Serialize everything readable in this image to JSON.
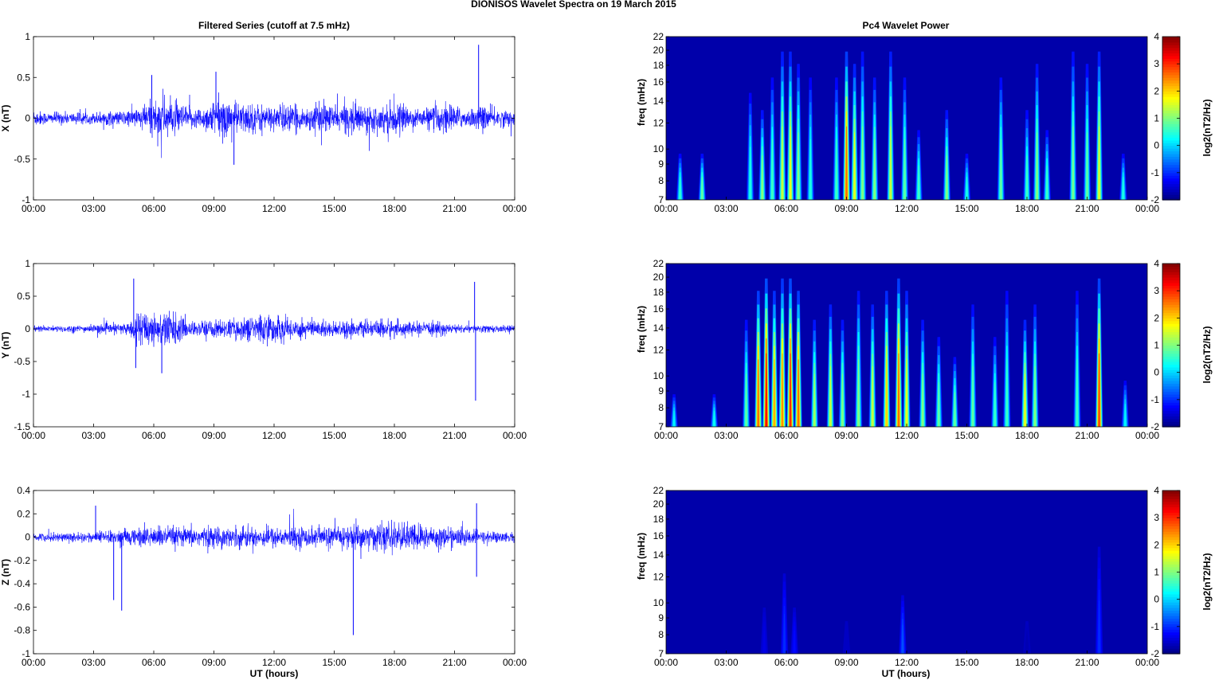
{
  "figure": {
    "title": "DIONISOS Wavelet Spectra on 19 March     2015",
    "left_title": "Filtered Series (cutoff at 7.5 mHz)",
    "right_title": "Pc4 Wavelet Power",
    "xlabel": "UT (hours)",
    "freq_label": "freq (mHz)",
    "colorbar_label": "log2(nT2/Hz)"
  },
  "colors": {
    "trace": "#0000ff",
    "background_power": "#00008f"
  },
  "chart_data": [
    {
      "type": "line",
      "title": "Filtered Series (cutoff at 7.5 mHz)",
      "ylabel": "X (nT)",
      "xlabel": "",
      "x_range_hours": [
        0,
        24
      ],
      "xticks": [
        "00:00",
        "03:00",
        "06:00",
        "09:00",
        "12:00",
        "15:00",
        "18:00",
        "21:00",
        "00:00"
      ],
      "ylim": [
        -1,
        1
      ],
      "yticks": [
        "-1",
        "-0.5",
        "0",
        "0.5",
        "1"
      ],
      "series": [
        {
          "values": [
            0.12,
            0.1,
            0.08,
            0.07,
            0.09,
            0.08,
            0.08,
            0.09,
            0.07,
            0.08,
            0.1,
            0.1,
            0.09,
            0.1,
            0.12,
            0.14,
            0.18,
            0.22,
            0.28,
            0.3,
            0.26,
            0.22,
            0.18,
            0.16,
            0.14,
            0.16,
            0.22,
            0.28,
            0.3,
            0.26,
            0.22,
            0.2,
            0.22,
            0.2,
            0.18,
            0.16,
            0.18,
            0.22,
            0.18,
            0.16,
            0.15,
            0.18,
            0.2,
            0.22,
            0.18,
            0.16,
            0.2,
            0.22,
            0.2,
            0.18,
            0.16,
            0.18,
            0.2,
            0.22,
            0.18,
            0.16,
            0.14,
            0.12,
            0.14,
            0.18,
            0.2,
            0.22,
            0.18,
            0.14,
            0.12,
            0.14,
            0.18,
            0.16,
            0.14,
            0.12,
            0.12,
            0.1
          ],
          "note_hours": 1
        }
      ],
      "spikes": [
        {
          "hour": 22.2,
          "value": 0.9
        },
        {
          "hour": 9.1,
          "value": 0.57
        },
        {
          "hour": 5.9,
          "value": 0.53
        },
        {
          "hour": 10.0,
          "value": -0.57
        }
      ]
    },
    {
      "type": "line",
      "ylabel": "Y (nT)",
      "xlabel": "",
      "x_range_hours": [
        0,
        24
      ],
      "xticks": [
        "00:00",
        "03:00",
        "06:00",
        "09:00",
        "12:00",
        "15:00",
        "18:00",
        "21:00",
        "00:00"
      ],
      "ylim": [
        -1.5,
        1
      ],
      "yticks": [
        "-1.5",
        "-1",
        "-0.5",
        "0",
        "0.5",
        "1"
      ],
      "series": [
        {
          "values": [
            0.06,
            0.06,
            0.05,
            0.05,
            0.06,
            0.06,
            0.07,
            0.06,
            0.06,
            0.07,
            0.08,
            0.08,
            0.09,
            0.09,
            0.12,
            0.2,
            0.3,
            0.32,
            0.28,
            0.3,
            0.34,
            0.26,
            0.18,
            0.14,
            0.12,
            0.14,
            0.16,
            0.16,
            0.14,
            0.16,
            0.18,
            0.2,
            0.22,
            0.24,
            0.28,
            0.26,
            0.22,
            0.2,
            0.18,
            0.2,
            0.18,
            0.16,
            0.15,
            0.14,
            0.12,
            0.14,
            0.16,
            0.14,
            0.12,
            0.12,
            0.12,
            0.16,
            0.18,
            0.16,
            0.14,
            0.12,
            0.12,
            0.1,
            0.1,
            0.12,
            0.12,
            0.1,
            0.08,
            0.07,
            0.06,
            0.06,
            0.07,
            0.07,
            0.06,
            0.06,
            0.06,
            0.05
          ]
        }
      ],
      "spikes": [
        {
          "hour": 22.0,
          "value": 0.72
        },
        {
          "hour": 22.05,
          "value": -1.1
        },
        {
          "hour": 5.0,
          "value": 0.77
        },
        {
          "hour": 6.4,
          "value": -0.68
        },
        {
          "hour": 5.1,
          "value": -0.6
        }
      ]
    },
    {
      "type": "line",
      "ylabel": "Z (nT)",
      "xlabel": "UT (hours)",
      "x_range_hours": [
        0,
        24
      ],
      "xticks": [
        "00:00",
        "03:00",
        "06:00",
        "09:00",
        "12:00",
        "15:00",
        "18:00",
        "21:00",
        "00:00"
      ],
      "ylim": [
        -1,
        0.4
      ],
      "yticks": [
        "-1",
        "-0.8",
        "-0.6",
        "-0.4",
        "-0.2",
        "0",
        "0.2",
        "0.4"
      ],
      "series": [
        {
          "values": [
            0.04,
            0.04,
            0.04,
            0.04,
            0.04,
            0.05,
            0.05,
            0.05,
            0.05,
            0.05,
            0.06,
            0.06,
            0.06,
            0.07,
            0.08,
            0.09,
            0.1,
            0.1,
            0.1,
            0.1,
            0.1,
            0.1,
            0.09,
            0.09,
            0.1,
            0.1,
            0.1,
            0.1,
            0.1,
            0.1,
            0.1,
            0.1,
            0.1,
            0.1,
            0.1,
            0.1,
            0.1,
            0.1,
            0.1,
            0.1,
            0.1,
            0.1,
            0.1,
            0.1,
            0.11,
            0.11,
            0.12,
            0.12,
            0.12,
            0.13,
            0.13,
            0.14,
            0.14,
            0.15,
            0.14,
            0.14,
            0.14,
            0.13,
            0.12,
            0.11,
            0.1,
            0.1,
            0.09,
            0.09,
            0.08,
            0.07,
            0.06,
            0.06,
            0.06,
            0.05,
            0.05,
            0.05
          ]
        }
      ],
      "spikes": [
        {
          "hour": 15.95,
          "value": -0.84
        },
        {
          "hour": 4.4,
          "value": -0.63
        },
        {
          "hour": 4.0,
          "value": -0.54
        },
        {
          "hour": 22.1,
          "value": -0.34
        },
        {
          "hour": 3.1,
          "value": 0.27
        },
        {
          "hour": 22.1,
          "value": 0.29
        }
      ]
    },
    {
      "type": "heatmap",
      "title": "Pc4 Wavelet Power",
      "ylabel": "freq (mHz)",
      "x_range_hours": [
        0,
        24
      ],
      "xticks": [
        "00:00",
        "03:00",
        "06:00",
        "09:00",
        "12:00",
        "15:00",
        "18:00",
        "21:00",
        "00:00"
      ],
      "yticks": [
        "7",
        "8",
        "9",
        "10",
        "12",
        "14",
        "16",
        "18",
        "20",
        "22"
      ],
      "ylim_mHz": [
        7,
        22
      ],
      "log_y": true,
      "colorbar": {
        "label": "log2(nT2/Hz)",
        "range": [
          -2,
          4
        ],
        "ticks": [
          "-2",
          "-1",
          "0",
          "1",
          "2",
          "3",
          "4"
        ],
        "colormap": "jet"
      },
      "bursts": [
        {
          "hour": 0.7,
          "top": 10,
          "peak": 0.5
        },
        {
          "hour": 1.8,
          "top": 10,
          "peak": 0.8
        },
        {
          "hour": 4.2,
          "top": 16,
          "peak": 0.4
        },
        {
          "hour": 4.8,
          "top": 14,
          "peak": 1.0
        },
        {
          "hour": 5.3,
          "top": 18,
          "peak": 0.6
        },
        {
          "hour": 5.8,
          "top": 22,
          "peak": 1.4
        },
        {
          "hour": 6.2,
          "top": 22,
          "peak": 1.6
        },
        {
          "hour": 6.6,
          "top": 20,
          "peak": 1.0
        },
        {
          "hour": 7.2,
          "top": 18,
          "peak": 0.4
        },
        {
          "hour": 8.5,
          "top": 18,
          "peak": 0.6
        },
        {
          "hour": 9.0,
          "top": 22,
          "peak": 2.6
        },
        {
          "hour": 9.4,
          "top": 20,
          "peak": 1.6
        },
        {
          "hour": 9.8,
          "top": 22,
          "peak": 1.0
        },
        {
          "hour": 10.4,
          "top": 18,
          "peak": 1.0
        },
        {
          "hour": 11.2,
          "top": 22,
          "peak": 1.4
        },
        {
          "hour": 11.9,
          "top": 18,
          "peak": 0.8
        },
        {
          "hour": 12.6,
          "top": 12,
          "peak": 0.6
        },
        {
          "hour": 14.0,
          "top": 14,
          "peak": 1.0
        },
        {
          "hour": 15.0,
          "top": 10,
          "peak": 0.4
        },
        {
          "hour": 16.7,
          "top": 18,
          "peak": 0.8
        },
        {
          "hour": 18.0,
          "top": 14,
          "peak": 0.6
        },
        {
          "hour": 18.5,
          "top": 20,
          "peak": 1.0
        },
        {
          "hour": 19.0,
          "top": 12,
          "peak": 0.6
        },
        {
          "hour": 20.3,
          "top": 22,
          "peak": 0.9
        },
        {
          "hour": 21.0,
          "top": 20,
          "peak": 0.8
        },
        {
          "hour": 21.6,
          "top": 22,
          "peak": 1.5
        },
        {
          "hour": 22.8,
          "top": 10,
          "peak": 0.4
        }
      ]
    },
    {
      "type": "heatmap",
      "ylabel": "freq (mHz)",
      "x_range_hours": [
        0,
        24
      ],
      "xticks": [
        "00:00",
        "03:00",
        "06:00",
        "09:00",
        "12:00",
        "15:00",
        "18:00",
        "21:00",
        "00:00"
      ],
      "yticks": [
        "7",
        "8",
        "9",
        "10",
        "12",
        "14",
        "16",
        "18",
        "20",
        "22"
      ],
      "ylim_mHz": [
        7,
        22
      ],
      "log_y": true,
      "colorbar": {
        "label": "log2(nT2/Hz)",
        "range": [
          -2,
          4
        ],
        "ticks": [
          "-2",
          "-1",
          "0",
          "1",
          "2",
          "3",
          "4"
        ],
        "colormap": "jet"
      },
      "bursts": [
        {
          "hour": 0.4,
          "top": 9,
          "peak": 0.2
        },
        {
          "hour": 2.4,
          "top": 9,
          "peak": 0.3
        },
        {
          "hour": 4.0,
          "top": 16,
          "peak": 0.8
        },
        {
          "hour": 4.6,
          "top": 20,
          "peak": 2.6
        },
        {
          "hour": 5.0,
          "top": 22,
          "peak": 3.2
        },
        {
          "hour": 5.4,
          "top": 20,
          "peak": 2.2
        },
        {
          "hour": 5.8,
          "top": 22,
          "peak": 2.4
        },
        {
          "hour": 6.2,
          "top": 22,
          "peak": 3.0
        },
        {
          "hour": 6.6,
          "top": 20,
          "peak": 2.6
        },
        {
          "hour": 7.4,
          "top": 16,
          "peak": 1.2
        },
        {
          "hour": 8.2,
          "top": 18,
          "peak": 1.4
        },
        {
          "hour": 8.8,
          "top": 16,
          "peak": 1.0
        },
        {
          "hour": 9.6,
          "top": 20,
          "peak": 1.0
        },
        {
          "hour": 10.3,
          "top": 18,
          "peak": 1.4
        },
        {
          "hour": 11.0,
          "top": 20,
          "peak": 2.0
        },
        {
          "hour": 11.6,
          "top": 22,
          "peak": 2.6
        },
        {
          "hour": 12.0,
          "top": 20,
          "peak": 1.6
        },
        {
          "hour": 12.8,
          "top": 16,
          "peak": 1.0
        },
        {
          "hour": 13.6,
          "top": 14,
          "peak": 0.8
        },
        {
          "hour": 14.4,
          "top": 12,
          "peak": 0.8
        },
        {
          "hour": 15.3,
          "top": 18,
          "peak": 0.8
        },
        {
          "hour": 16.4,
          "top": 14,
          "peak": 0.6
        },
        {
          "hour": 17.0,
          "top": 20,
          "peak": 0.6
        },
        {
          "hour": 17.9,
          "top": 16,
          "peak": 1.6
        },
        {
          "hour": 18.4,
          "top": 18,
          "peak": 1.0
        },
        {
          "hour": 20.5,
          "top": 20,
          "peak": 0.6
        },
        {
          "hour": 21.6,
          "top": 22,
          "peak": 2.8
        },
        {
          "hour": 22.9,
          "top": 10,
          "peak": 0.2
        }
      ]
    },
    {
      "type": "heatmap",
      "ylabel": "freq (mHz)",
      "xlabel": "UT (hours)",
      "x_range_hours": [
        0,
        24
      ],
      "xticks": [
        "00:00",
        "03:00",
        "06:00",
        "09:00",
        "12:00",
        "15:00",
        "18:00",
        "21:00",
        "00:00"
      ],
      "yticks": [
        "7",
        "8",
        "9",
        "10",
        "12",
        "14",
        "16",
        "18",
        "20",
        "22"
      ],
      "ylim_mHz": [
        7,
        22
      ],
      "log_y": true,
      "colorbar": {
        "label": "log2(nT2/Hz)",
        "range": [
          -2,
          4
        ],
        "ticks": [
          "-2",
          "-1",
          "0",
          "1",
          "2",
          "3",
          "4"
        ],
        "colormap": "jet"
      },
      "bursts": [
        {
          "hour": 4.9,
          "top": 10,
          "peak": -1.4
        },
        {
          "hour": 5.9,
          "top": 13,
          "peak": -1.0
        },
        {
          "hour": 6.4,
          "top": 10,
          "peak": -1.2
        },
        {
          "hour": 9.0,
          "top": 9,
          "peak": -1.6
        },
        {
          "hour": 11.8,
          "top": 11,
          "peak": -0.8
        },
        {
          "hour": 18.0,
          "top": 9,
          "peak": -1.7
        },
        {
          "hour": 21.6,
          "top": 16,
          "peak": -1.0
        }
      ]
    }
  ]
}
